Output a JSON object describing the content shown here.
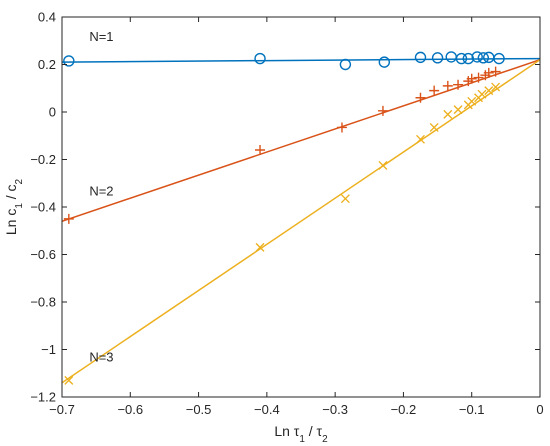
{
  "chart_data": {
    "type": "scatter",
    "title": "",
    "xlabel": {
      "base": "Ln τ",
      "sub1": "1",
      "mid": " / τ",
      "sub2": "2"
    },
    "ylabel": {
      "base": "Ln c",
      "sub1": "1",
      "mid": " / c",
      "sub2": "2"
    },
    "xlim": [
      -0.7,
      0
    ],
    "ylim": [
      -1.2,
      0.4
    ],
    "xticks": [
      -0.7,
      -0.6,
      -0.5,
      -0.4,
      -0.3,
      -0.2,
      -0.1,
      0
    ],
    "xtick_labels": [
      "−0.7",
      "−0.6",
      "−0.5",
      "−0.4",
      "−0.3",
      "−0.2",
      "−0.1",
      "0"
    ],
    "yticks": [
      -1.2,
      -1,
      -0.8,
      -0.6,
      -0.4,
      -0.2,
      0,
      0.2,
      0.4
    ],
    "ytick_labels": [
      "−1.2",
      "−1",
      "−0.8",
      "−0.6",
      "−0.4",
      "−0.2",
      "0",
      "0.2",
      "0.4"
    ],
    "grid": false,
    "series": [
      {
        "name": "N=1",
        "color": "#0072BD",
        "marker": "circle",
        "x": [
          -0.69,
          -0.41,
          -0.285,
          -0.228,
          -0.175,
          -0.15,
          -0.13,
          -0.115,
          -0.105,
          -0.092,
          -0.083,
          -0.075,
          -0.06
        ],
        "y": [
          0.215,
          0.225,
          0.2,
          0.21,
          0.23,
          0.228,
          0.232,
          0.225,
          0.225,
          0.232,
          0.228,
          0.23,
          0.225
        ],
        "fit": {
          "x": [
            -0.7,
            0
          ],
          "y": [
            0.21,
            0.225
          ]
        },
        "label_pos": {
          "x": -0.66,
          "y": 0.32
        }
      },
      {
        "name": "N=2",
        "color": "#D95319",
        "marker": "plus",
        "x": [
          -0.69,
          -0.41,
          -0.29,
          -0.23,
          -0.175,
          -0.155,
          -0.135,
          -0.12,
          -0.105,
          -0.1,
          -0.09,
          -0.08,
          -0.075,
          -0.065
        ],
        "y": [
          -0.45,
          -0.16,
          -0.065,
          0.005,
          0.06,
          0.09,
          0.11,
          0.115,
          0.13,
          0.14,
          0.145,
          0.155,
          0.165,
          0.17
        ],
        "fit": {
          "x": [
            -0.7,
            0
          ],
          "y": [
            -0.46,
            0.22
          ]
        },
        "label_pos": {
          "x": -0.66,
          "y": -0.33
        }
      },
      {
        "name": "N=3",
        "color": "#EDB120",
        "marker": "x",
        "x": [
          -0.69,
          -0.41,
          -0.285,
          -0.23,
          -0.175,
          -0.155,
          -0.135,
          -0.12,
          -0.105,
          -0.1,
          -0.09,
          -0.085,
          -0.075,
          -0.065
        ],
        "y": [
          -1.13,
          -0.57,
          -0.365,
          -0.225,
          -0.115,
          -0.065,
          -0.01,
          0.01,
          0.03,
          0.045,
          0.06,
          0.075,
          0.09,
          0.105
        ],
        "fit": {
          "x": [
            -0.7,
            0
          ],
          "y": [
            -1.14,
            0.22
          ]
        },
        "label_pos": {
          "x": -0.66,
          "y": -1.03
        }
      }
    ]
  }
}
